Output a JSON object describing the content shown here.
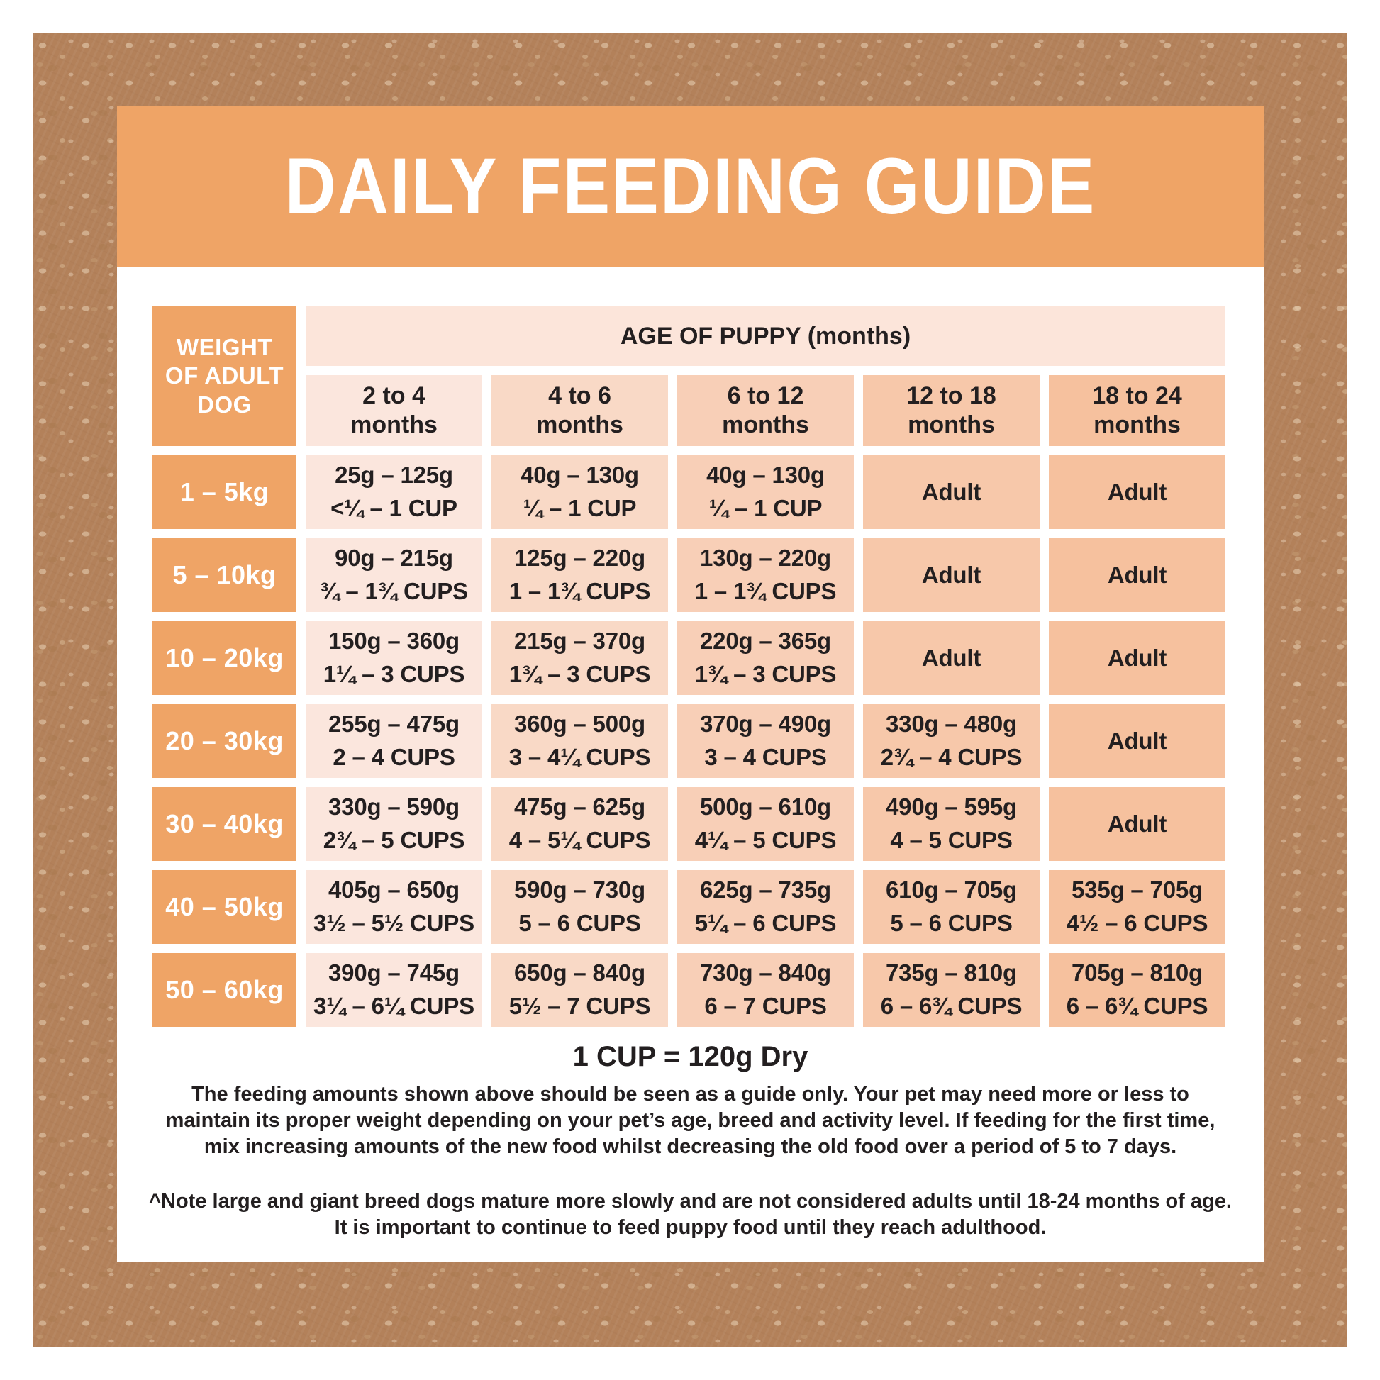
{
  "title_band": {
    "title": "DAILY FEEDING GUIDE"
  },
  "table": {
    "corner_header_lines": [
      "WEIGHT",
      "OF ADULT",
      "DOG"
    ],
    "age_banner": "AGE OF PUPPY (months)",
    "age_columns": [
      [
        "2 to 4",
        "months"
      ],
      [
        "4 to 6",
        "months"
      ],
      [
        "6 to 12",
        "months"
      ],
      [
        "12 to 18",
        "months"
      ],
      [
        "18 to 24",
        "months"
      ]
    ],
    "rows": [
      {
        "weight": "1 – 5kg",
        "cells": [
          [
            "25g – 125g",
            "<¼ – 1 CUP"
          ],
          [
            "40g – 130g",
            "¼ – 1 CUP"
          ],
          [
            "40g – 130g",
            "¼ – 1 CUP"
          ],
          [
            "Adult"
          ],
          [
            "Adult"
          ]
        ]
      },
      {
        "weight": "5 – 10kg",
        "cells": [
          [
            "90g – 215g",
            "¾ – 1¾ CUPS"
          ],
          [
            "125g – 220g",
            "1 – 1¾ CUPS"
          ],
          [
            "130g – 220g",
            "1 – 1¾ CUPS"
          ],
          [
            "Adult"
          ],
          [
            "Adult"
          ]
        ]
      },
      {
        "weight": "10 – 20kg",
        "cells": [
          [
            "150g – 360g",
            "1¼ – 3 CUPS"
          ],
          [
            "215g – 370g",
            "1¾ – 3 CUPS"
          ],
          [
            "220g – 365g",
            "1¾ – 3 CUPS"
          ],
          [
            "Adult"
          ],
          [
            "Adult"
          ]
        ]
      },
      {
        "weight": "20 – 30kg",
        "cells": [
          [
            "255g – 475g",
            "2 – 4 CUPS"
          ],
          [
            "360g – 500g",
            "3 – 4¼ CUPS"
          ],
          [
            "370g – 490g",
            "3 – 4 CUPS"
          ],
          [
            "330g – 480g",
            "2¾ – 4 CUPS"
          ],
          [
            "Adult"
          ]
        ]
      },
      {
        "weight": "30 – 40kg",
        "cells": [
          [
            "330g – 590g",
            "2¾ – 5 CUPS"
          ],
          [
            "475g – 625g",
            "4 – 5¼ CUPS"
          ],
          [
            "500g – 610g",
            "4¼ – 5 CUPS"
          ],
          [
            "490g – 595g",
            "4 – 5 CUPS"
          ],
          [
            "Adult"
          ]
        ]
      },
      {
        "weight": "40 – 50kg",
        "cells": [
          [
            "405g – 650g",
            "3½ – 5½ CUPS"
          ],
          [
            "590g – 730g",
            "5 – 6 CUPS"
          ],
          [
            "625g – 735g",
            "5¼ – 6 CUPS"
          ],
          [
            "610g – 705g",
            "5 – 6 CUPS"
          ],
          [
            "535g – 705g",
            "4½ – 6 CUPS"
          ]
        ]
      },
      {
        "weight": "50 – 60kg",
        "cells": [
          [
            "390g – 745g",
            "3¼ – 6¼ CUPS"
          ],
          [
            "650g – 840g",
            "5½ – 7 CUPS"
          ],
          [
            "730g – 840g",
            "6 – 7 CUPS"
          ],
          [
            "735g – 810g",
            "6 – 6¾ CUPS"
          ],
          [
            "705g – 810g",
            "6 – 6¾ CUPS"
          ]
        ]
      }
    ]
  },
  "footer": {
    "cup_equivalence": "1 CUP = 120g Dry",
    "guide_paragraph_lines": [
      "The feeding amounts shown above should be seen as a guide only. Your pet may need more or less to",
      "maintain its proper weight depending on your pet’s age, breed and activity level. If feeding for the first time,",
      "mix increasing amounts of the new food whilst decreasing the old food over a period of 5 to 7 days."
    ],
    "note_lines": [
      "^Note large and giant breed dogs mature more slowly and are not considered adults until 18-24 months of age.",
      "It is important to continue to feed puppy food until they reach adulthood."
    ]
  },
  "colors": {
    "frame_brown": "#b3815a",
    "band_orange": "#efa466",
    "banner_pink": "#fce5da",
    "column_shades": [
      "#fbe6dd",
      "#f9d9c6",
      "#f8cfb7",
      "#f7c8aa",
      "#f6c19e"
    ],
    "text_dark": "#231f20",
    "text_white": "#ffffff"
  }
}
